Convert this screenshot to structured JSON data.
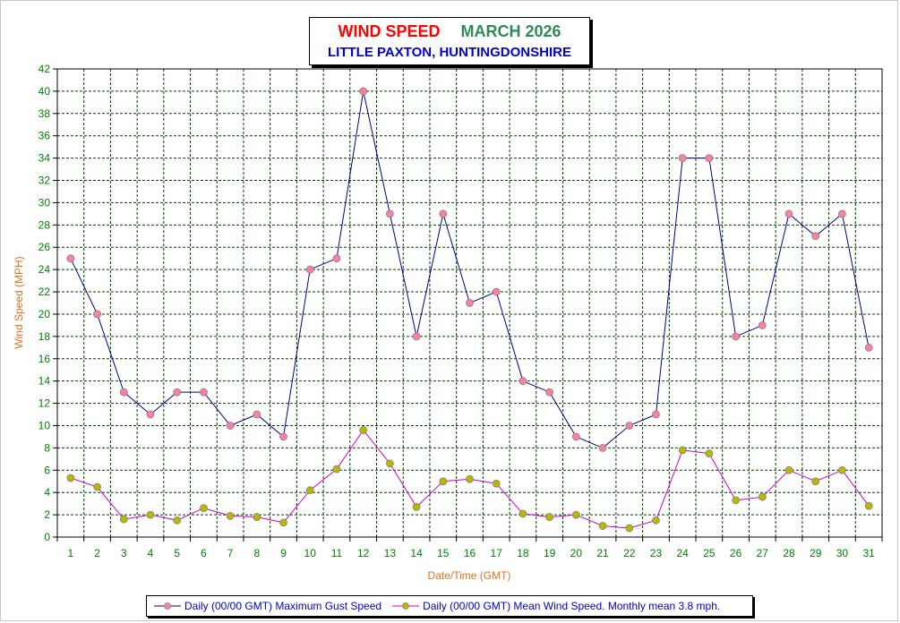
{
  "title": {
    "main": "WIND SPEED",
    "period": "MARCH 2026",
    "location": "LITTLE PAXTON, HUNTINGDONSHIRE"
  },
  "colors": {
    "title_main": "#ff0000",
    "title_period": "#2e8b57",
    "location": "#0000cc",
    "axis_label": "#e07020",
    "tick_label": "#008000",
    "gust_line": "#000080",
    "mean_line": "#cc00cc",
    "gust_marker": "#ff7fa0",
    "mean_marker": "#b8b800",
    "grid": "#004000"
  },
  "chart_data": {
    "type": "line",
    "xlabel": "Date/Time (GMT)",
    "ylabel": "Wind Speed (MPH)",
    "ylim": [
      0,
      42
    ],
    "ytick_step": 2,
    "grid": true,
    "legend_position": "bottom",
    "categories": [
      "1",
      "2",
      "3",
      "4",
      "5",
      "6",
      "7",
      "8",
      "9",
      "10",
      "11",
      "12",
      "13",
      "14",
      "15",
      "16",
      "17",
      "18",
      "19",
      "20",
      "21",
      "22",
      "23",
      "24",
      "25",
      "26",
      "27",
      "28",
      "29",
      "30",
      "31"
    ],
    "series": [
      {
        "name": "Daily (00/00 GMT) Maximum Gust Speed",
        "values": [
          25,
          20,
          13,
          11,
          13,
          13,
          10,
          11,
          9,
          24,
          25,
          40,
          29,
          18,
          29,
          21,
          22,
          14,
          13,
          9,
          8,
          10,
          11,
          34,
          34,
          18,
          19,
          29,
          27,
          29,
          17
        ]
      },
      {
        "name": "Daily (00/00 GMT) Mean Wind Speed. Monthly mean 3.8 mph.",
        "values": [
          5.3,
          4.5,
          1.6,
          2.0,
          1.5,
          2.6,
          1.9,
          1.8,
          1.3,
          4.2,
          6.1,
          9.6,
          6.6,
          2.7,
          5.0,
          5.2,
          4.8,
          2.1,
          1.8,
          2.0,
          1.0,
          0.8,
          1.5,
          7.8,
          7.5,
          3.3,
          3.6,
          6.0,
          5.0,
          6.0,
          2.8
        ]
      }
    ]
  }
}
